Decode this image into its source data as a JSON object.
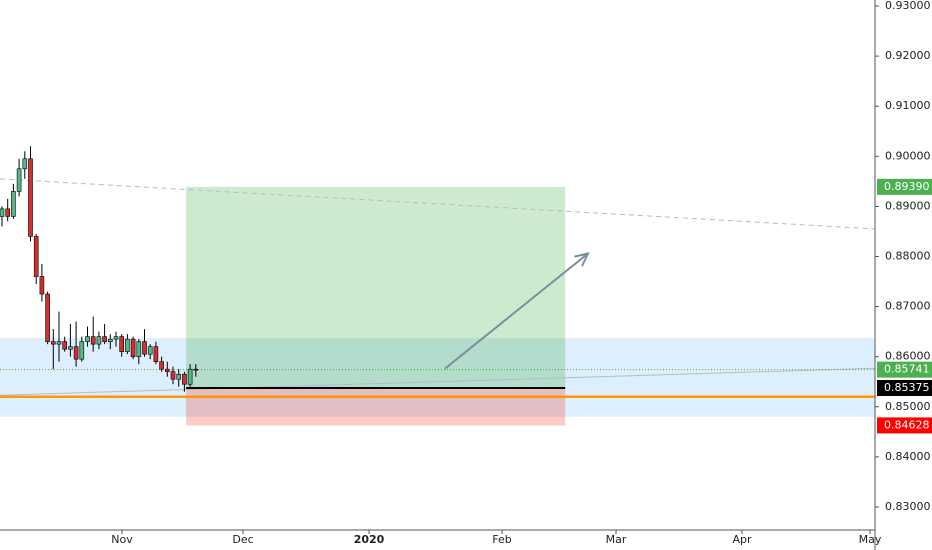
{
  "chart_data": {
    "type": "candlestick",
    "categories": [
      null,
      null,
      null,
      null,
      null,
      null,
      null,
      null,
      null,
      null,
      null,
      null,
      null,
      null,
      null,
      null,
      null,
      null,
      null,
      null,
      null,
      null,
      null,
      null,
      null,
      null,
      null,
      null,
      null,
      null,
      null,
      null,
      null,
      null,
      null
    ],
    "open": [
      0.888,
      0.8895,
      0.888,
      0.893,
      0.8975,
      0.8995,
      0.884,
      0.876,
      0.8725,
      0.863,
      0.8625,
      0.863,
      0.8615,
      0.862,
      0.8595,
      0.863,
      0.864,
      0.8625,
      0.864,
      0.863,
      0.8635,
      0.864,
      0.861,
      0.8635,
      0.86,
      0.863,
      0.8605,
      0.862,
      0.859,
      0.8575,
      0.857,
      0.8555,
      0.8565,
      0.8545,
      0.8575
    ],
    "high": [
      0.89,
      0.8915,
      0.8945,
      0.8995,
      0.901,
      0.902,
      0.8845,
      0.8785,
      0.873,
      0.8655,
      0.869,
      0.864,
      0.8665,
      0.867,
      0.864,
      0.866,
      0.868,
      0.865,
      0.8665,
      0.8645,
      0.865,
      0.8645,
      0.8645,
      0.864,
      0.8635,
      0.8655,
      0.8625,
      0.863,
      0.86,
      0.859,
      0.858,
      0.8575,
      0.857,
      0.8585,
      0.8585
    ],
    "low": [
      0.886,
      0.887,
      0.8875,
      0.892,
      0.8955,
      0.883,
      0.8745,
      0.871,
      0.8625,
      0.8575,
      0.859,
      0.861,
      0.86,
      0.858,
      0.859,
      0.862,
      0.861,
      0.8615,
      0.8625,
      0.8615,
      0.862,
      0.86,
      0.8605,
      0.8595,
      0.8585,
      0.86,
      0.8595,
      0.8585,
      0.857,
      0.856,
      0.8545,
      0.854,
      0.853,
      0.8535,
      0.856
    ],
    "close": [
      0.8895,
      0.888,
      0.893,
      0.8975,
      0.8995,
      0.884,
      0.876,
      0.8725,
      0.863,
      0.8625,
      0.863,
      0.8615,
      0.862,
      0.8595,
      0.863,
      0.864,
      0.8625,
      0.864,
      0.863,
      0.8635,
      0.864,
      0.861,
      0.8635,
      0.86,
      0.863,
      0.8605,
      0.862,
      0.859,
      0.8575,
      0.857,
      0.8555,
      0.8565,
      0.8545,
      0.8575,
      0.8574
    ],
    "up_color": "#53b987",
    "down_color": "#d32f2f",
    "xlim": [
      -0.35,
      153.15
    ],
    "ylim": [
      0.8254,
      0.9312
    ],
    "xticks": [
      {
        "value": 21.05,
        "label": "Nov"
      },
      {
        "value": 42.28,
        "label": "Dec"
      },
      {
        "value": 64.39,
        "label": "2020"
      },
      {
        "value": 87.72,
        "label": "Feb"
      },
      {
        "value": 107.72,
        "label": "Mar"
      },
      {
        "value": 129.82,
        "label": "Apr"
      },
      {
        "value": 152.28,
        "label": "May"
      }
    ],
    "yticks": [
      {
        "value": 0.83,
        "label": "0.83000"
      },
      {
        "value": 0.84,
        "label": "0.84000"
      },
      {
        "value": 0.85,
        "label": "0.85000"
      },
      {
        "value": 0.86,
        "label": "0.86000"
      },
      {
        "value": 0.87,
        "label": "0.87000"
      },
      {
        "value": 0.88,
        "label": "0.88000"
      },
      {
        "value": 0.89,
        "label": "0.89000"
      },
      {
        "value": 0.9,
        "label": "0.90000"
      },
      {
        "value": 0.91,
        "label": "0.91000"
      },
      {
        "value": 0.92,
        "label": "0.92000"
      },
      {
        "value": 0.93,
        "label": "0.93000"
      }
    ],
    "price_labels": [
      {
        "value": 0.8939,
        "label": "0.89390",
        "color": "#4caf50"
      },
      {
        "value": 0.85741,
        "label": "0.85741",
        "color": "#4caf50"
      },
      {
        "value": 0.85375,
        "label": "0.85375",
        "color": "#000000"
      },
      {
        "value": 0.84628,
        "label": "0.84628",
        "color": "#ff0000"
      }
    ],
    "position": {
      "x_start": 32.3,
      "x_end": 98.8,
      "target": 0.8939,
      "entry": 0.85375,
      "stop": 0.84628
    },
    "support_band": [
      0.848,
      0.8637
    ],
    "orange_line": 0.852,
    "last_price": 0.85741,
    "trend_lines": [
      {
        "x": [
          -0.35,
          153.15
        ],
        "y": [
          0.8955,
          0.8855
        ],
        "color": "#bbbbbb",
        "dashed": true
      },
      {
        "x": [
          -0.35,
          153.15
        ],
        "y": [
          0.8523,
          0.8577
        ],
        "color": "#b0bec5",
        "dashed": false
      }
    ],
    "arrow": {
      "x": [
        77.7,
        102.8
      ],
      "y": [
        0.8576,
        0.8806
      ],
      "color": "#78909c"
    }
  }
}
